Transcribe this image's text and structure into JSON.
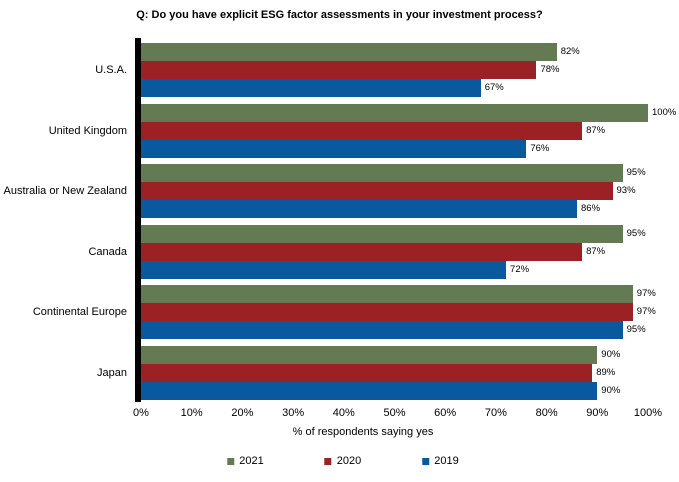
{
  "title": "Q: Do you have explicit ESG factor assessments in your investment process?",
  "chart_data": {
    "type": "bar",
    "orientation": "horizontal",
    "title": "Q: Do you have explicit ESG factor assessments in your investment process?",
    "categories": [
      "U.S.A.",
      "United Kingdom",
      "Australia or New Zealand",
      "Canada",
      "Continental Europe",
      "Japan"
    ],
    "series": [
      {
        "name": "2021",
        "color": "#647A52",
        "values": [
          82,
          100,
          95,
          95,
          97,
          90
        ]
      },
      {
        "name": "2020",
        "color": "#9B2124",
        "values": [
          78,
          87,
          93,
          87,
          97,
          89
        ]
      },
      {
        "name": "2019",
        "color": "#08599D",
        "values": [
          67,
          76,
          86,
          72,
          95,
          90
        ]
      }
    ],
    "value_suffix": "%",
    "xlabel": "% of respondents saying yes",
    "x_ticks": [
      "0%",
      "10%",
      "20%",
      "30%",
      "40%",
      "50%",
      "60%",
      "70%",
      "80%",
      "90%",
      "100%"
    ],
    "xlim": [
      0,
      100
    ],
    "grid": false,
    "legend_position": "bottom",
    "axis_line_color": "#000000",
    "background_color": "#FFFFFF",
    "data_labels": true
  }
}
